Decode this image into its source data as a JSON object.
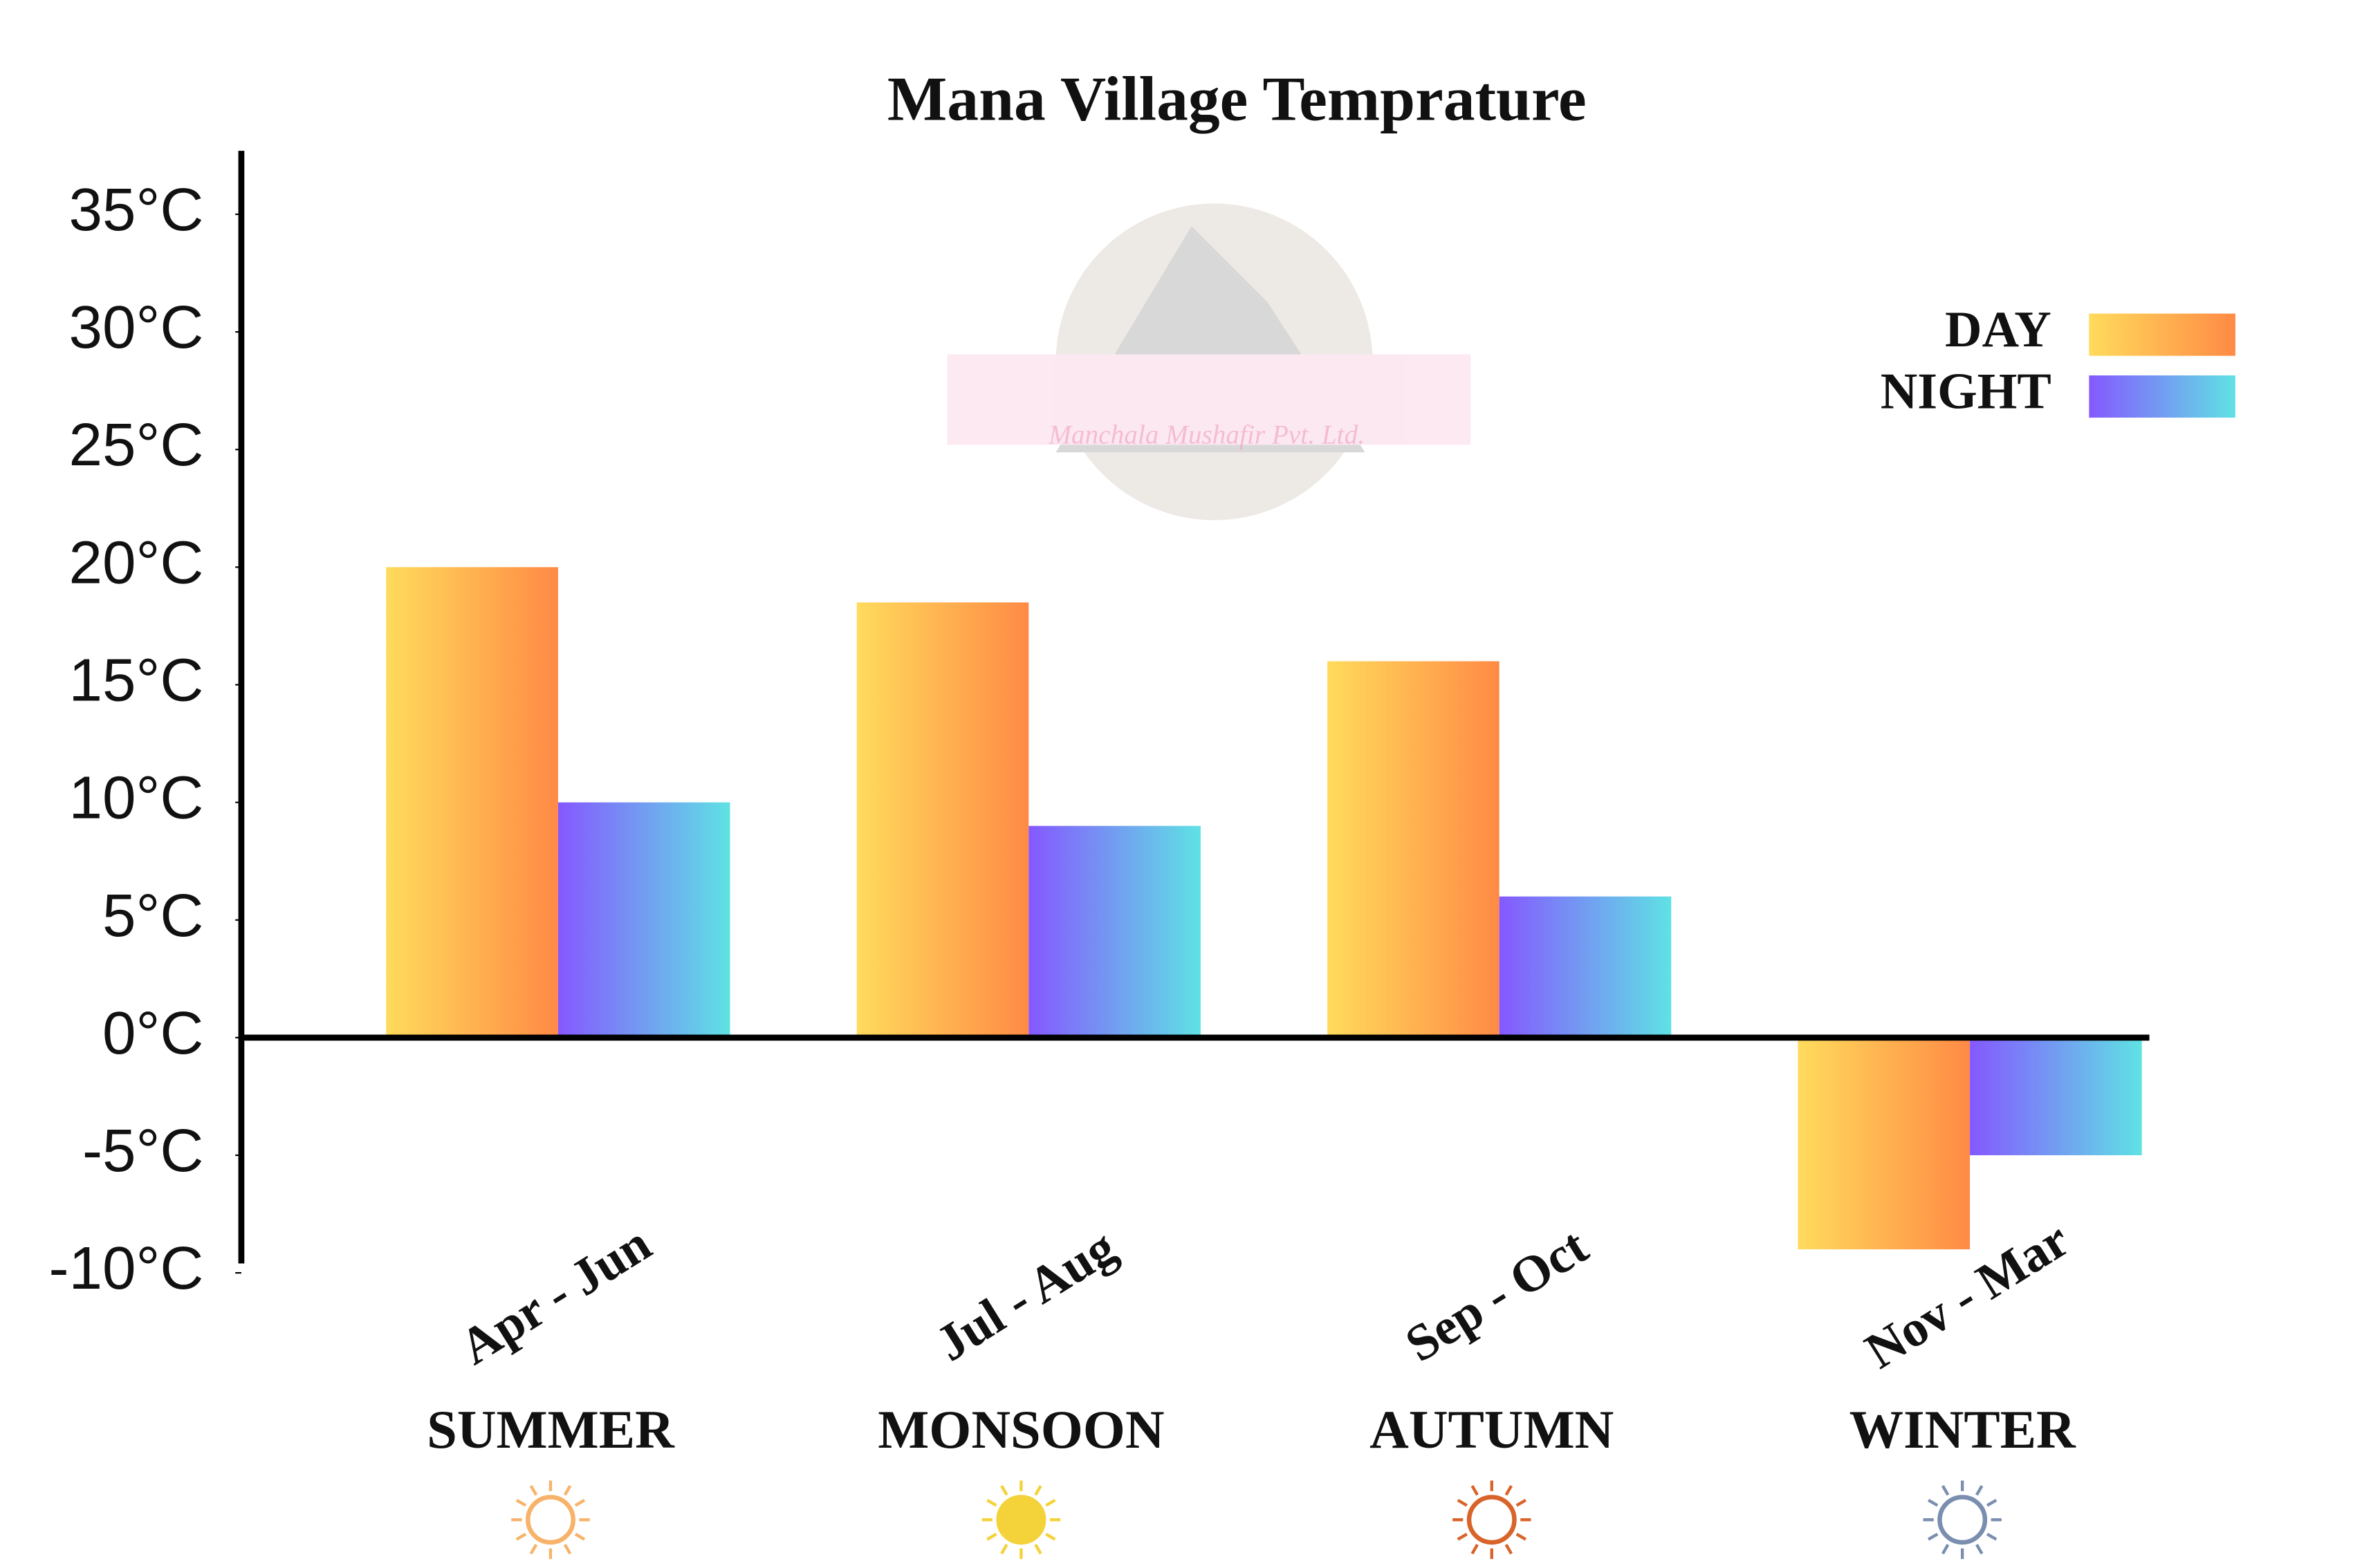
{
  "chart_data": {
    "type": "bar",
    "title": "Mana Village Temprature",
    "categories": [
      "Apr - Jun",
      "Jul - Aug",
      "Sep - Oct",
      "Nov - Mar"
    ],
    "seasons": [
      "SUMMER",
      "MONSOON",
      "AUTUMN",
      "WINTER"
    ],
    "watermark": "Manchala Mushafir Pvt. Ltd.",
    "series": [
      {
        "name": "DAY",
        "color": [
          "#ffdb5c",
          "#ff8a45"
        ],
        "values": [
          20,
          18.5,
          16,
          -9
        ]
      },
      {
        "name": "NIGHT",
        "color": [
          "#8558ff",
          "#5fe2e4"
        ],
        "values": [
          10,
          9,
          6,
          -5
        ]
      }
    ],
    "ylim": [
      -9.6,
      37.7
    ],
    "yticks": [
      {
        "value": 35,
        "label": "35°C"
      },
      {
        "value": 30,
        "label": "30°C"
      },
      {
        "value": 25,
        "label": "25°C"
      },
      {
        "value": 20,
        "label": "20°C"
      },
      {
        "value": 15,
        "label": "15°C"
      },
      {
        "value": 10,
        "label": "10°C"
      },
      {
        "value": 5,
        "label": "5°C"
      },
      {
        "value": 0,
        "label": "0°C"
      },
      {
        "value": -5,
        "label": "-5°C"
      },
      {
        "value": -10,
        "label": "-10°C"
      }
    ],
    "legend": "top-right",
    "grid": false
  }
}
